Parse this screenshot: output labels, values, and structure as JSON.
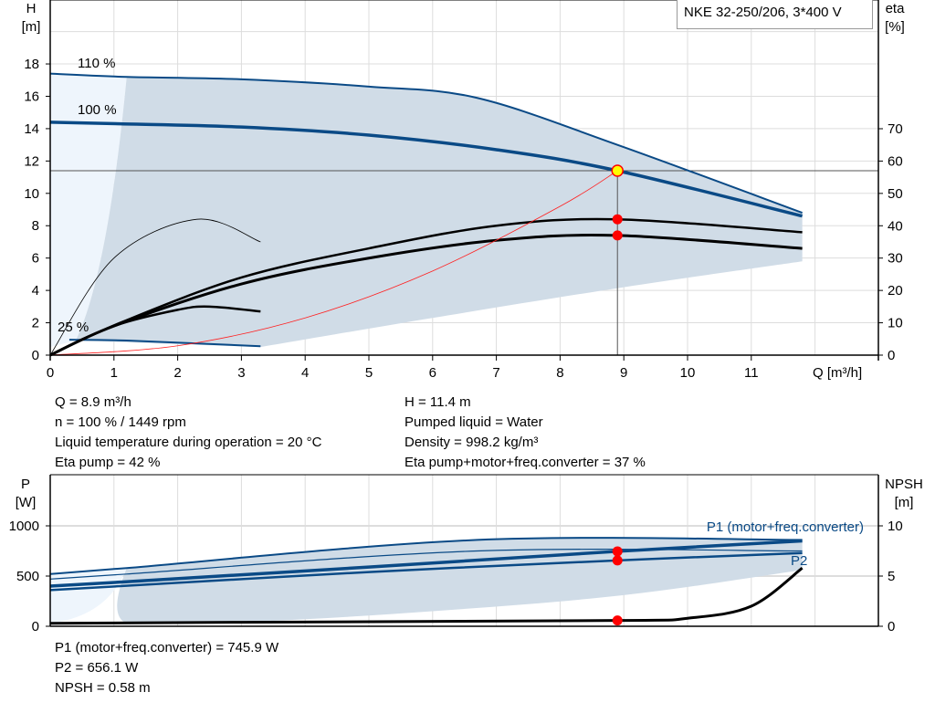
{
  "title": "NKE 32-250/206, 3*400 V",
  "colors": {
    "curve": "#0a4a86",
    "band": "#d0dce7",
    "band_light": "#eef5fc",
    "eta": "#000000",
    "system": "#ff2020",
    "point": "#ff0000",
    "duty_point_fill": "#ffff00"
  },
  "chart_data": [
    {
      "type": "line",
      "xlabel": "Q [m³/h]",
      "ylabel": "H\n[m]",
      "ylabel_top": "H",
      "ylabel_unit": "[m]",
      "y2label_top": "eta",
      "y2label_unit": "[%]",
      "xlim": [
        0,
        12.9
      ],
      "ylim": [
        0,
        21.9
      ],
      "y2lim": [
        0,
        109.5
      ],
      "xticks": [
        0,
        1,
        2,
        3,
        4,
        5,
        6,
        7,
        8,
        9,
        10,
        11
      ],
      "yticks": [
        0,
        2,
        4,
        6,
        8,
        10,
        12,
        14,
        16,
        18
      ],
      "y2ticks": [
        0,
        10,
        20,
        30,
        40,
        50,
        60,
        70
      ],
      "grid": true,
      "series": [
        {
          "name": "110 %",
          "axis": "H",
          "points": [
            [
              0,
              17.4
            ],
            [
              1.2,
              17.2
            ],
            [
              3,
              17.05
            ],
            [
              5,
              16.6
            ],
            [
              6.7,
              15.9
            ],
            [
              8.9,
              13.0
            ],
            [
              11.8,
              8.8
            ]
          ]
        },
        {
          "name": "100 %",
          "axis": "H",
          "points": [
            [
              0,
              14.4
            ],
            [
              1.1,
              14.3
            ],
            [
              3,
              14.1
            ],
            [
              5,
              13.6
            ],
            [
              7,
              12.7
            ],
            [
              8.9,
              11.4
            ],
            [
              11.8,
              8.6
            ]
          ]
        },
        {
          "name": "25 %",
          "axis": "H",
          "points": [
            [
              0.3,
              0.95
            ],
            [
              1.2,
              0.9
            ],
            [
              3.3,
              0.55
            ]
          ]
        },
        {
          "axis": "eta",
          "points": [
            [
              0,
              0
            ],
            [
              1.1,
              10
            ],
            [
              3,
              24
            ],
            [
              5,
              33
            ],
            [
              7,
              40
            ],
            [
              8.9,
              42
            ],
            [
              11.8,
              38
            ]
          ]
        },
        {
          "axis": "eta",
          "points": [
            [
              0,
              0
            ],
            [
              1,
              9
            ],
            [
              3,
              22
            ],
            [
              5,
              30
            ],
            [
              7,
              35.5
            ],
            [
              8.9,
              37
            ],
            [
              11.8,
              33
            ]
          ]
        },
        {
          "axis": "eta",
          "points": [
            [
              0,
              0
            ],
            [
              1,
              30
            ],
            [
              2.3,
              42
            ],
            [
              3.3,
              35
            ]
          ]
        },
        {
          "axis": "eta",
          "points": [
            [
              0,
              0
            ],
            [
              1,
              9
            ],
            [
              2,
              14
            ],
            [
              2.5,
              15
            ],
            [
              3.3,
              13.5
            ]
          ]
        },
        {
          "axis": "H",
          "system_curve": true,
          "points": [
            [
              0,
              0
            ],
            [
              2,
              0.58
            ],
            [
              4,
              2.3
            ],
            [
              6,
              5.2
            ],
            [
              8,
              9.2
            ],
            [
              8.9,
              11.4
            ]
          ]
        }
      ],
      "duty_point": {
        "Q": 8.9,
        "H": 11.4
      },
      "marked_points": [
        {
          "Q": 8.9,
          "eta": 42
        },
        {
          "Q": 8.9,
          "eta": 37
        }
      ],
      "labels": [
        "110 %",
        "100 %",
        "25 %"
      ]
    },
    {
      "type": "line",
      "ylabel_top": "P",
      "ylabel_unit": "[W]",
      "y2label_top": "NPSH",
      "y2label_unit": "[m]",
      "xlim": [
        0,
        12.9
      ],
      "ylim": [
        0,
        1510
      ],
      "y2lim": [
        0,
        15.1
      ],
      "yticks": [
        0,
        500,
        1000
      ],
      "y2ticks": [
        0,
        5,
        10
      ],
      "grid": true,
      "series": [
        {
          "name": "P1 (motor+freq.converter)",
          "axis": "P",
          "points": [
            [
              0,
              400
            ],
            [
              1.1,
              440
            ],
            [
              5,
              590
            ],
            [
              8.9,
              746
            ],
            [
              11.8,
              850
            ]
          ]
        },
        {
          "name": "P2",
          "axis": "P",
          "points": [
            [
              0,
              360
            ],
            [
              1.1,
              400
            ],
            [
              5,
              540
            ],
            [
              8.9,
              656
            ],
            [
              11.8,
              730
            ]
          ]
        },
        {
          "axis": "P",
          "points": [
            [
              0,
              520
            ],
            [
              1.2,
              580
            ],
            [
              6.7,
              860
            ],
            [
              11.8,
              860
            ]
          ]
        },
        {
          "axis": "P",
          "points": [
            [
              0,
              470
            ],
            [
              1.2,
              520
            ],
            [
              6.7,
              750
            ],
            [
              11.8,
              750
            ]
          ]
        },
        {
          "axis": "NPSH",
          "points": [
            [
              0,
              0.3
            ],
            [
              3,
              0.4
            ],
            [
              8.9,
              0.58
            ],
            [
              10,
              0.8
            ],
            [
              11,
              2
            ],
            [
              11.8,
              5.8
            ]
          ]
        }
      ],
      "marked_points": [
        {
          "Q": 8.9,
          "P": 745.9
        },
        {
          "Q": 8.9,
          "P": 656.1
        },
        {
          "Q": 8.9,
          "NPSH": 0.58
        }
      ]
    }
  ],
  "info_left": [
    "Q = 8.9 m³/h",
    "n = 100 % / 1449 rpm",
    "Liquid temperature during operation = 20 °C",
    "Eta pump = 42 %"
  ],
  "info_right": [
    "H = 11.4 m",
    "Pumped liquid = Water",
    "Density = 998.2 kg/m³",
    "Eta pump+motor+freq.converter = 37 %"
  ],
  "info_bottom": [
    "P1 (motor+freq.converter) = 745.9 W",
    "P2 = 656.1 W",
    "NPSH = 0.58 m"
  ]
}
